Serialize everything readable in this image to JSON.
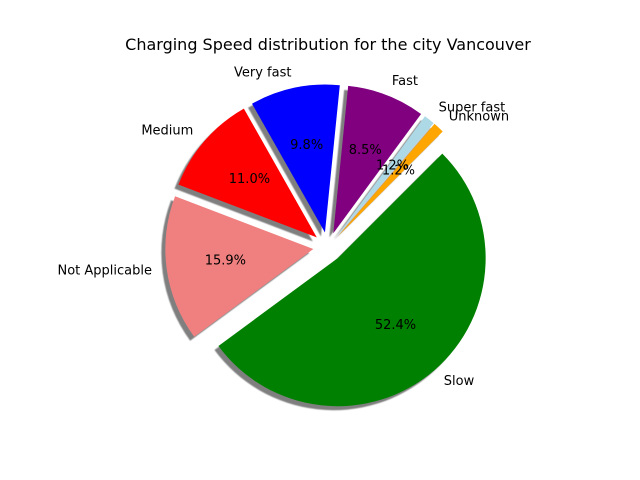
{
  "chart_data": {
    "type": "pie",
    "title": "Charging Speed distribution for the city Vancouver",
    "start_angle_deg": 45,
    "shadow": true,
    "slices": [
      {
        "label": "Unknown",
        "percent": 1.2,
        "percent_text": "1.2%",
        "color": "#ffa500",
        "exploded": true
      },
      {
        "label": "Super fast",
        "percent": 1.2,
        "percent_text": "1.2%",
        "color": "#add8e6",
        "exploded": true
      },
      {
        "label": "Fast",
        "percent": 8.5,
        "percent_text": "8.5%",
        "color": "#800080",
        "exploded": true
      },
      {
        "label": "Very fast",
        "percent": 9.8,
        "percent_text": "9.8%",
        "color": "#0000ff",
        "exploded": true
      },
      {
        "label": "Medium",
        "percent": 11.0,
        "percent_text": "11.0%",
        "color": "#ff0000",
        "exploded": true
      },
      {
        "label": "Not Applicable",
        "percent": 15.9,
        "percent_text": "15.9%",
        "color": "#f08080",
        "exploded": true
      },
      {
        "label": "Slow",
        "percent": 52.4,
        "percent_text": "52.4%",
        "color": "#008000",
        "exploded": true
      }
    ]
  }
}
